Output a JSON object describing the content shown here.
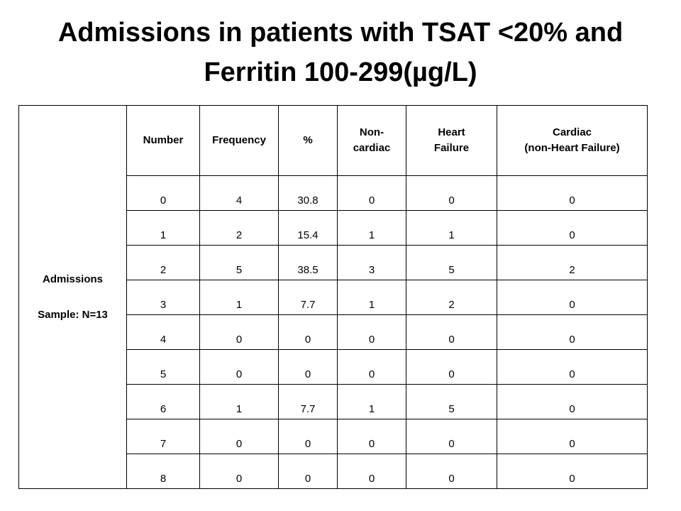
{
  "title": {
    "line1": "Admissions in patients with TSAT <20% and",
    "line2": "Ferritin 100-299(µg/L)"
  },
  "side_label": {
    "line1": "Admissions",
    "line2": "Sample: N=13"
  },
  "headers": [
    [
      "Number"
    ],
    [
      "Frequency"
    ],
    [
      "%"
    ],
    [
      "Non-",
      "cardiac"
    ],
    [
      "Heart",
      "Failure"
    ],
    [
      "Cardiac",
      "(non-Heart Failure)"
    ]
  ],
  "rows": [
    [
      "0",
      "4",
      "30.8",
      "0",
      "0",
      "0"
    ],
    [
      "1",
      "2",
      "15.4",
      "1",
      "1",
      "0"
    ],
    [
      "2",
      "5",
      "38.5",
      "3",
      "5",
      "2"
    ],
    [
      "3",
      "1",
      "7.7",
      "1",
      "2",
      "0"
    ],
    [
      "4",
      "0",
      "0",
      "0",
      "0",
      "0"
    ],
    [
      "5",
      "0",
      "0",
      "0",
      "0",
      "0"
    ],
    [
      "6",
      "1",
      "7.7",
      "1",
      "5",
      "0"
    ],
    [
      "7",
      "0",
      "0",
      "0",
      "0",
      "0"
    ],
    [
      "8",
      "0",
      "0",
      "0",
      "0",
      "0"
    ]
  ]
}
